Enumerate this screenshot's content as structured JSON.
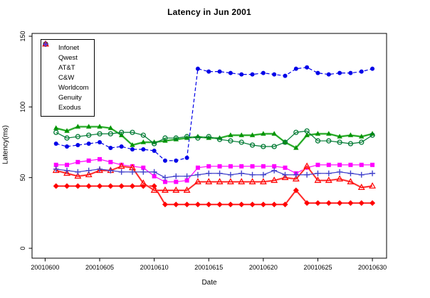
{
  "chart_data": {
    "type": "line",
    "title": "Latency in Jun 2001",
    "xlabel": "Date",
    "ylabel": "Latency(ms)",
    "x_ticks": [
      "20010600",
      "20010605",
      "20010610",
      "20010615",
      "20010620",
      "20010625",
      "20010630"
    ],
    "x_tick_values": [
      0,
      5,
      10,
      15,
      20,
      25,
      30
    ],
    "y_ticks": [
      "0",
      "50",
      "100",
      "150"
    ],
    "y_tick_values": [
      0,
      50,
      100,
      150
    ],
    "xlim": [
      -1.2,
      31.3
    ],
    "ylim": [
      -7,
      152
    ],
    "grid": false,
    "legend_position": "top-left-inside",
    "days": [
      1,
      2,
      3,
      4,
      5,
      6,
      7,
      8,
      9,
      10,
      11,
      12,
      13,
      14,
      15,
      16,
      17,
      18,
      19,
      20,
      21,
      22,
      23,
      24,
      25,
      26,
      27,
      28,
      29,
      30
    ],
    "series": [
      {
        "name": "Infonet",
        "color": "#0000e8",
        "halo": null,
        "marker": "circle-filled",
        "line_style": "dashed",
        "values": [
          74,
          72,
          73,
          74,
          75,
          71,
          72,
          70,
          70,
          69,
          62,
          62,
          64,
          127,
          125,
          125,
          124,
          123,
          123,
          124,
          123,
          122,
          127,
          128,
          124,
          123,
          124,
          124,
          125,
          127
        ]
      },
      {
        "name": "Qwest",
        "color": "#009400",
        "halo": "#8fdb8f",
        "marker": "triangle-filled",
        "line_style": "solid",
        "values": [
          85,
          83,
          86,
          86,
          86,
          85,
          80,
          73,
          75,
          75,
          76,
          77,
          78,
          79,
          78,
          78,
          80,
          80,
          80,
          81,
          81,
          75,
          71,
          80,
          81,
          81,
          79,
          80,
          79,
          81
        ]
      },
      {
        "name": "AT&T",
        "color": "#ff0000",
        "halo": "#ffb3b3",
        "marker": "diamond-filled",
        "line_style": "solid",
        "values": [
          44,
          44,
          44,
          44,
          44,
          44,
          44,
          44,
          44,
          44,
          31,
          31,
          31,
          31,
          31,
          31,
          31,
          31,
          31,
          31,
          31,
          31,
          41,
          32,
          32,
          32,
          32,
          32,
          32,
          32
        ]
      },
      {
        "name": "C&W",
        "color": "#ff00ff",
        "halo": null,
        "marker": "square-filled",
        "line_style": "solid",
        "values": [
          59,
          59,
          61,
          62,
          63,
          61,
          59,
          58,
          57,
          51,
          47,
          47,
          48,
          57,
          58,
          58,
          58,
          58,
          58,
          58,
          58,
          57,
          53,
          57,
          59,
          59,
          59,
          59,
          59,
          59
        ]
      },
      {
        "name": "Worldcom",
        "color": "#007a33",
        "halo": null,
        "marker": "circle-open",
        "line_style": "solid",
        "values": [
          82,
          78,
          79,
          80,
          81,
          81,
          82,
          82,
          80,
          74,
          78,
          78,
          79,
          78,
          79,
          77,
          76,
          75,
          73,
          72,
          72,
          75,
          82,
          83,
          76,
          76,
          75,
          74,
          75,
          80
        ]
      },
      {
        "name": "Genuity",
        "color": "#ff0000",
        "halo": "#ffb3b3",
        "marker": "triangle-open",
        "line_style": "solid",
        "values": [
          55,
          53,
          51,
          52,
          55,
          55,
          58,
          57,
          46,
          41,
          41,
          41,
          41,
          47,
          47,
          47,
          47,
          47,
          47,
          47,
          48,
          50,
          49,
          58,
          48,
          48,
          49,
          47,
          43,
          44
        ]
      },
      {
        "name": "Exodus",
        "color": "#4242cc",
        "halo": null,
        "marker": "plus",
        "line_style": "solid",
        "values": [
          56,
          55,
          54,
          55,
          56,
          55,
          54,
          54,
          54,
          54,
          50,
          51,
          51,
          52,
          53,
          53,
          52,
          53,
          52,
          52,
          55,
          52,
          52,
          52,
          53,
          53,
          54,
          53,
          52,
          53
        ]
      }
    ]
  }
}
